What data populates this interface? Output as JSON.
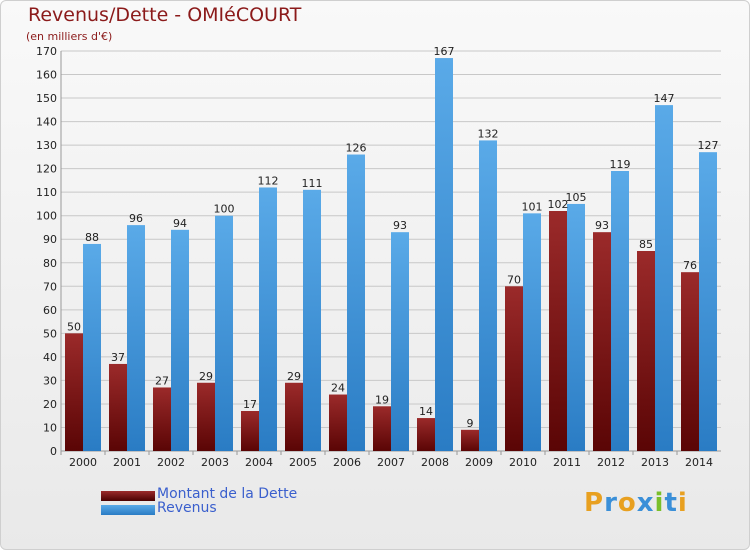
{
  "title": "Revenus/Dette - OMIéCOURT",
  "subtitle": "(en milliers d'€)",
  "legend": [
    {
      "label": "Montant de la Dette",
      "color": "#8b1a1a"
    },
    {
      "label": "Revenus",
      "color": "#3d8fd8"
    }
  ],
  "logo": {
    "text": "Proxiti"
  },
  "colors": {
    "dette": "#7a1515",
    "revenus": "#4a9ae0",
    "grid": "#c8c8c8",
    "axis_text": "#222222"
  },
  "chart_data": {
    "type": "bar",
    "title": "Revenus/Dette - OMIéCOURT",
    "ylabel": "(en milliers d'€)",
    "ylim": [
      0,
      170
    ],
    "ytick_step": 10,
    "categories": [
      "2000",
      "2001",
      "2002",
      "2003",
      "2004",
      "2005",
      "2006",
      "2007",
      "2008",
      "2009",
      "2010",
      "2011",
      "2012",
      "2013",
      "2014"
    ],
    "series": [
      {
        "name": "Montant de la Dette",
        "values": [
          50,
          37,
          27,
          29,
          17,
          29,
          24,
          19,
          14,
          9,
          70,
          102,
          93,
          85,
          76
        ]
      },
      {
        "name": "Revenus",
        "values": [
          88,
          96,
          94,
          100,
          112,
          111,
          126,
          93,
          167,
          132,
          101,
          105,
          119,
          147,
          127
        ]
      }
    ]
  }
}
